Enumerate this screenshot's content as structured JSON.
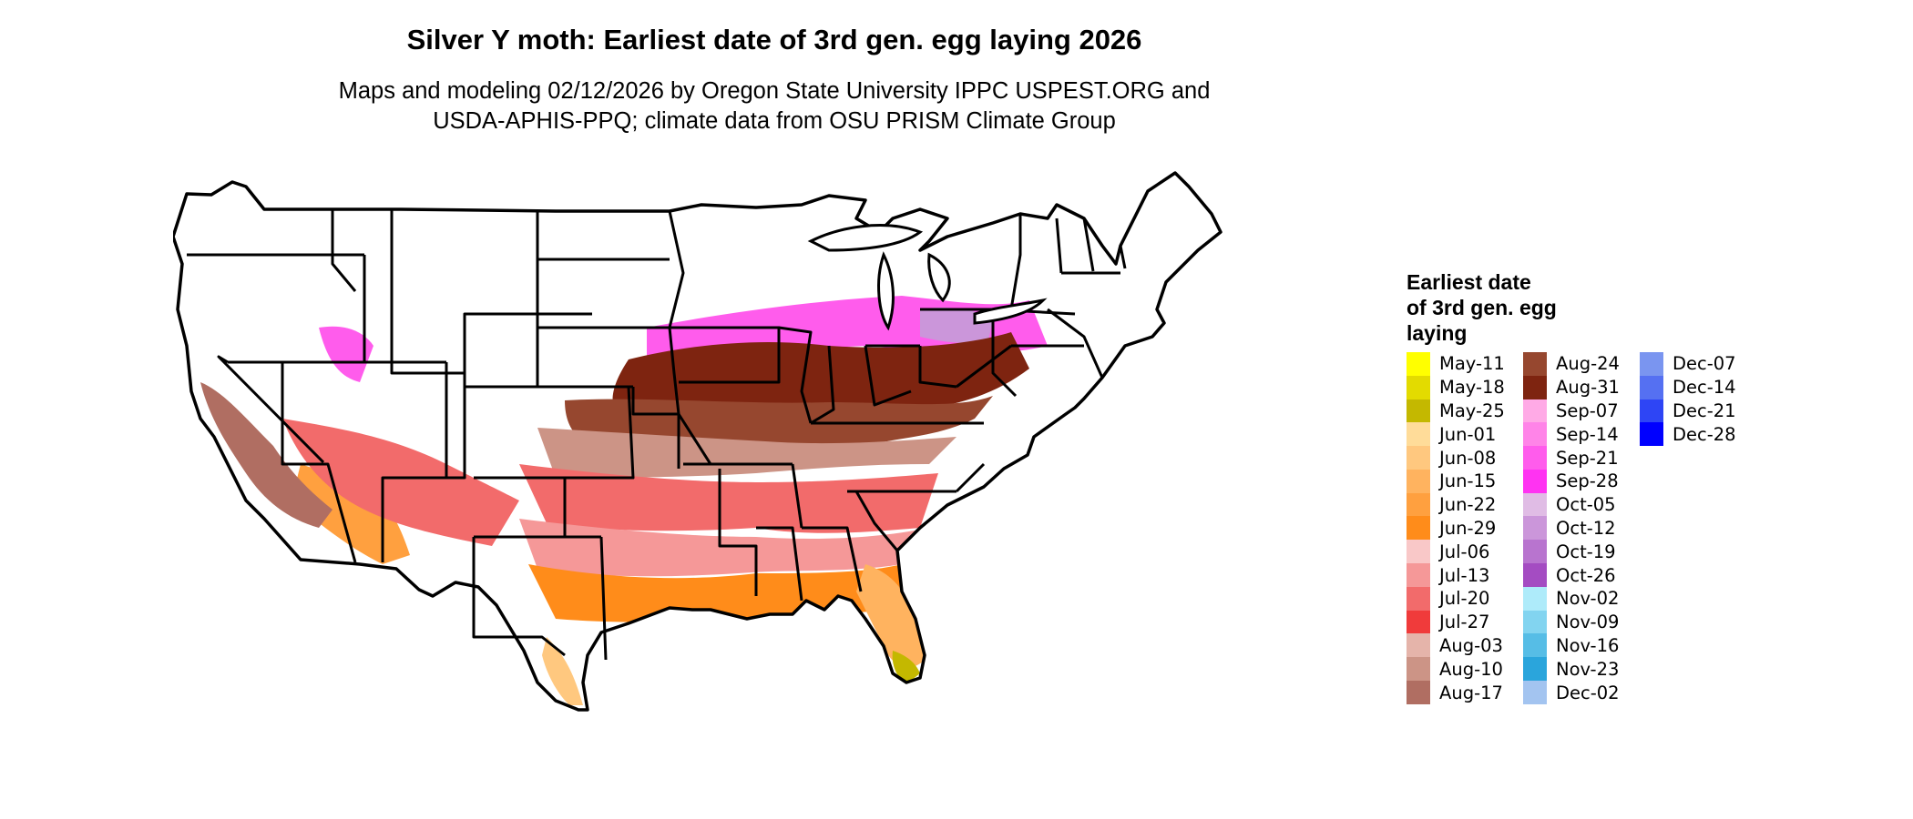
{
  "title": "Silver Y moth: Earliest date of 3rd gen. egg laying 2026",
  "subtitle": [
    "Maps and modeling 02/12/2026 by Oregon State University IPPC USPEST.ORG and",
    "USDA-APHIS-PPQ; climate data from OSU PRISM Climate Group"
  ],
  "legend": {
    "title": [
      "Earliest date",
      "of 3rd gen. egg",
      "laying"
    ],
    "columns": [
      [
        {
          "label": "May-11",
          "color": "#FFFF00"
        },
        {
          "label": "May-18",
          "color": "#E3DB00"
        },
        {
          "label": "May-25",
          "color": "#C4B800"
        },
        {
          "label": "Jun-01",
          "color": "#FFDC99"
        },
        {
          "label": "Jun-08",
          "color": "#FFC87F"
        },
        {
          "label": "Jun-15",
          "color": "#FFB35F"
        },
        {
          "label": "Jun-22",
          "color": "#FFA03F"
        },
        {
          "label": "Jun-29",
          "color": "#FF8C1A"
        },
        {
          "label": "Jul-06",
          "color": "#F9C8C8"
        },
        {
          "label": "Jul-13",
          "color": "#F59898"
        },
        {
          "label": "Jul-20",
          "color": "#F26B6B"
        },
        {
          "label": "Jul-27",
          "color": "#F03B3B"
        },
        {
          "label": "Aug-03",
          "color": "#E5B4AA"
        },
        {
          "label": "Aug-10",
          "color": "#CC9486"
        },
        {
          "label": "Aug-17",
          "color": "#B06E62"
        }
      ],
      [
        {
          "label": "Aug-24",
          "color": "#96472F"
        },
        {
          "label": "Aug-31",
          "color": "#7E2410"
        },
        {
          "label": "Sep-07",
          "color": "#FFAAE6"
        },
        {
          "label": "Sep-14",
          "color": "#FF84E8"
        },
        {
          "label": "Sep-21",
          "color": "#FF5CEC"
        },
        {
          "label": "Sep-28",
          "color": "#FF33F2"
        },
        {
          "label": "Oct-05",
          "color": "#E0BCE5"
        },
        {
          "label": "Oct-12",
          "color": "#CB96DA"
        },
        {
          "label": "Oct-19",
          "color": "#B874CF"
        },
        {
          "label": "Oct-26",
          "color": "#A44CC2"
        },
        {
          "label": "Nov-02",
          "color": "#AEEBFA"
        },
        {
          "label": "Nov-09",
          "color": "#82D4F0"
        },
        {
          "label": "Nov-16",
          "color": "#56BDE6"
        },
        {
          "label": "Nov-23",
          "color": "#2AA5DC"
        },
        {
          "label": "Dec-02",
          "color": "#A3C4F0"
        }
      ],
      [
        {
          "label": "Dec-07",
          "color": "#7A95F0"
        },
        {
          "label": "Dec-14",
          "color": "#5570F2"
        },
        {
          "label": "Dec-21",
          "color": "#2E45F5"
        },
        {
          "label": "Dec-28",
          "color": "#0000FF"
        }
      ]
    ]
  }
}
